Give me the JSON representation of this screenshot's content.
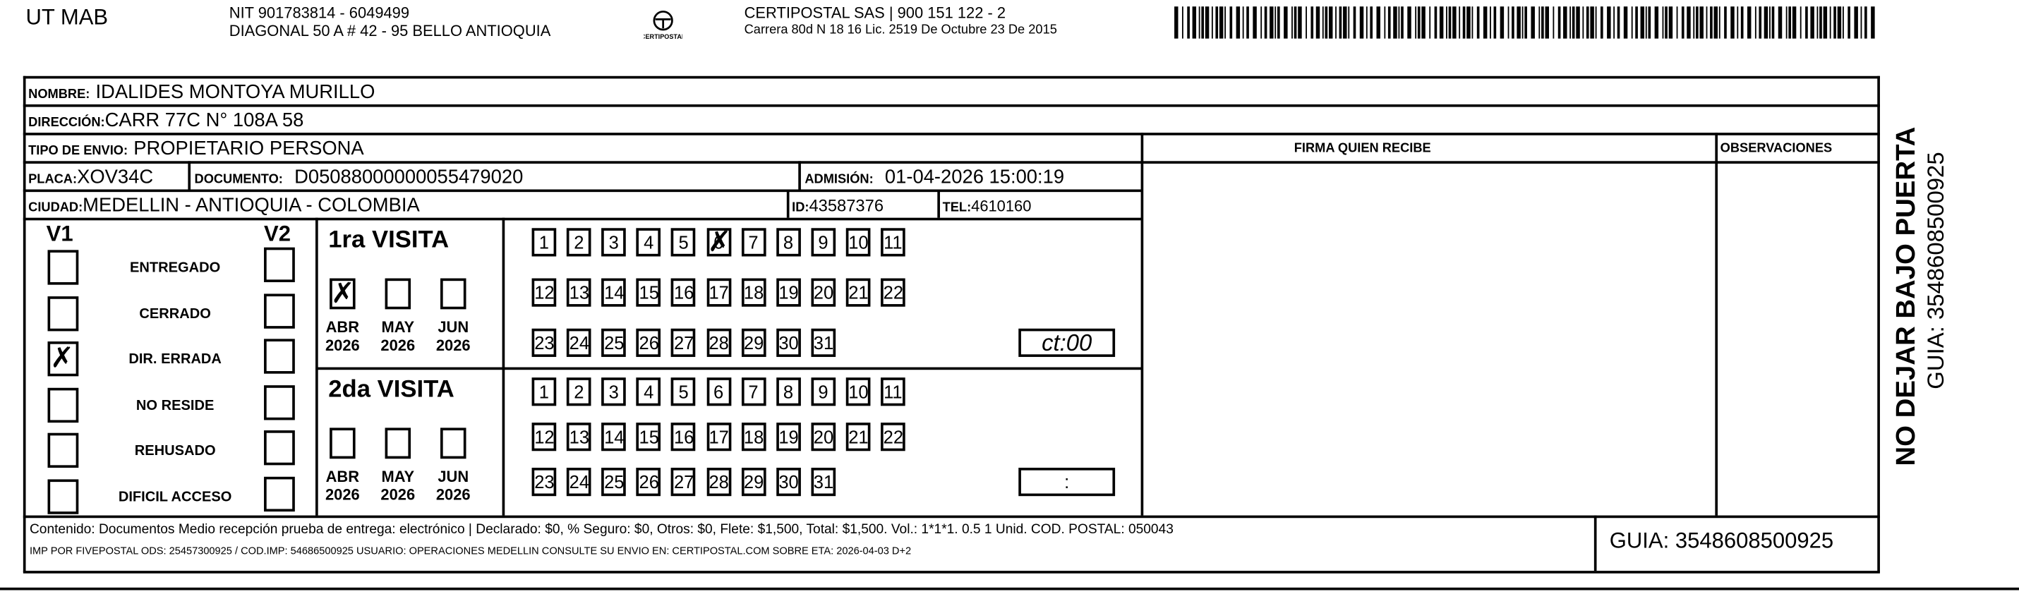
{
  "header": {
    "company": "UT MAB",
    "nit": "NIT 901783814 - 6049499",
    "address": "DIAGONAL 50 A # 42 - 95  BELLO  ANTIOQUIA",
    "logo_text": "CERTIPOSTAL",
    "carrier": "CERTIPOSTAL SAS | 900 151 122 - 2",
    "carrier_address": "Carrera 80d N 18 16  Lic. 2519 De Octubre 23 De 2015",
    "barcode_icon": "barcode"
  },
  "recipient": {
    "nombre_label": "NOMBRE:",
    "nombre": "IDALIDES MONTOYA MURILLO",
    "direccion_label": "DIRECCIÓN:",
    "direccion": "CARR 77C N° 108A 58",
    "tipo_label": "TIPO DE ENVIO:",
    "tipo": "PROPIETARIO PERSONA",
    "placa_label": "PLACA:",
    "placa": "XOV34C",
    "documento_label": "DOCUMENTO:",
    "documento": "D05088000000055479020",
    "admision_label": "ADMISIÓN:",
    "admision": "01-04-2026 15:00:19",
    "ciudad_label": "CIUDAD:",
    "ciudad": "MEDELLIN - ANTIOQUIA - COLOMBIA",
    "id_label": "ID:",
    "id": "43587376",
    "tel_label": "TEL:",
    "tel": "4610160"
  },
  "columns": {
    "firma": "FIRMA QUIEN RECIBE",
    "observaciones": "OBSERVACIONES"
  },
  "status": {
    "v1": "V1",
    "v2": "V2",
    "items": [
      {
        "label": "ENTREGADO",
        "v1": false,
        "v2": false
      },
      {
        "label": "CERRADO",
        "v1": false,
        "v2": false
      },
      {
        "label": "DIR. ERRADA",
        "v1": true,
        "v2": false
      },
      {
        "label": "NO RESIDE",
        "v1": false,
        "v2": false
      },
      {
        "label": "REHUSADO",
        "v1": false,
        "v2": false
      },
      {
        "label": "DIFICIL ACCESO",
        "v1": false,
        "v2": false
      }
    ]
  },
  "visits": [
    {
      "title": "1ra VISITA",
      "months": [
        {
          "m": "ABR",
          "y": "2026",
          "checked": true
        },
        {
          "m": "MAY",
          "y": "2026",
          "checked": false
        },
        {
          "m": "JUN",
          "y": "2026",
          "checked": false
        }
      ],
      "checked_day": 6,
      "time": "ct:00"
    },
    {
      "title": "2da VISITA",
      "months": [
        {
          "m": "ABR",
          "y": "2026",
          "checked": false
        },
        {
          "m": "MAY",
          "y": "2026",
          "checked": false
        },
        {
          "m": "JUN",
          "y": "2026",
          "checked": false
        }
      ],
      "checked_day": null,
      "time": ":"
    }
  ],
  "footer": {
    "line1": "Contenido: Documentos Medio recepción prueba de entrega: electrónico | Declarado: $0, % Seguro: $0, Otros: $0, Flete: $1,500, Total: $1,500. Vol.: 1*1*1. 0.5  1 Unid. COD. POSTAL: 050043",
    "line2": "IMP POR FIVEPOSTAL ODS: 25457300925 / COD.IMP: 54686500925 USUARIO: OPERACIONES MEDELLIN CONSULTE SU ENVIO EN: CERTIPOSTAL.COM SOBRE ETA: 2026-04-03 D+2",
    "guia": "GUIA: 3548608500925"
  },
  "side": {
    "warning": "NO DEJAR BAJO PUERTA",
    "guia": "GUIA: 3548608500925"
  }
}
